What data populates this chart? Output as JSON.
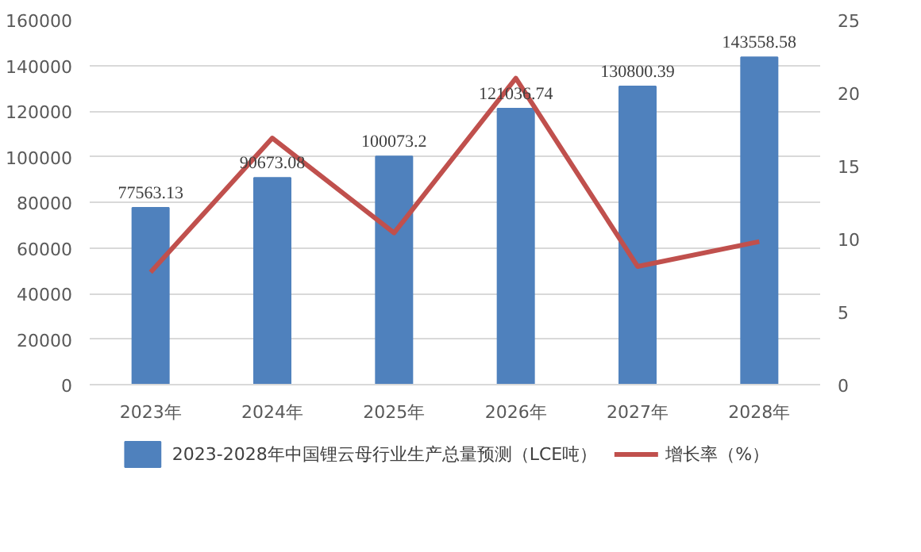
{
  "chart_data": {
    "type": "bar",
    "categories": [
      "2023年",
      "2024年",
      "2025年",
      "2026年",
      "2027年",
      "2028年"
    ],
    "series": [
      {
        "name": "2023-2028年中国锂云母行业生产总量预测（LCE吨）",
        "color": "#4f81bd",
        "values": [
          77563.13,
          90673.08,
          100073.2,
          121036.74,
          130800.39,
          143558.58
        ],
        "value_labels": [
          "77563.13",
          "90673.08",
          "100073.2",
          "121036.74",
          "130800.39",
          "143558.58"
        ]
      },
      {
        "name": "增长率（%）",
        "type": "line",
        "axis": "y2",
        "color": "#c0504d",
        "values": [
          7.7,
          16.9,
          10.4,
          21.0,
          8.1,
          9.8
        ]
      }
    ],
    "ylim": [
      0,
      160000
    ],
    "yticks": [
      0,
      20000,
      40000,
      60000,
      80000,
      100000,
      120000,
      140000,
      160000
    ],
    "y2lim": [
      0,
      25
    ],
    "y2ticks": [
      0,
      5,
      10,
      15,
      20,
      25
    ],
    "grid": "y",
    "legend": "bottom",
    "marker": "none",
    "line_style": "solid"
  }
}
